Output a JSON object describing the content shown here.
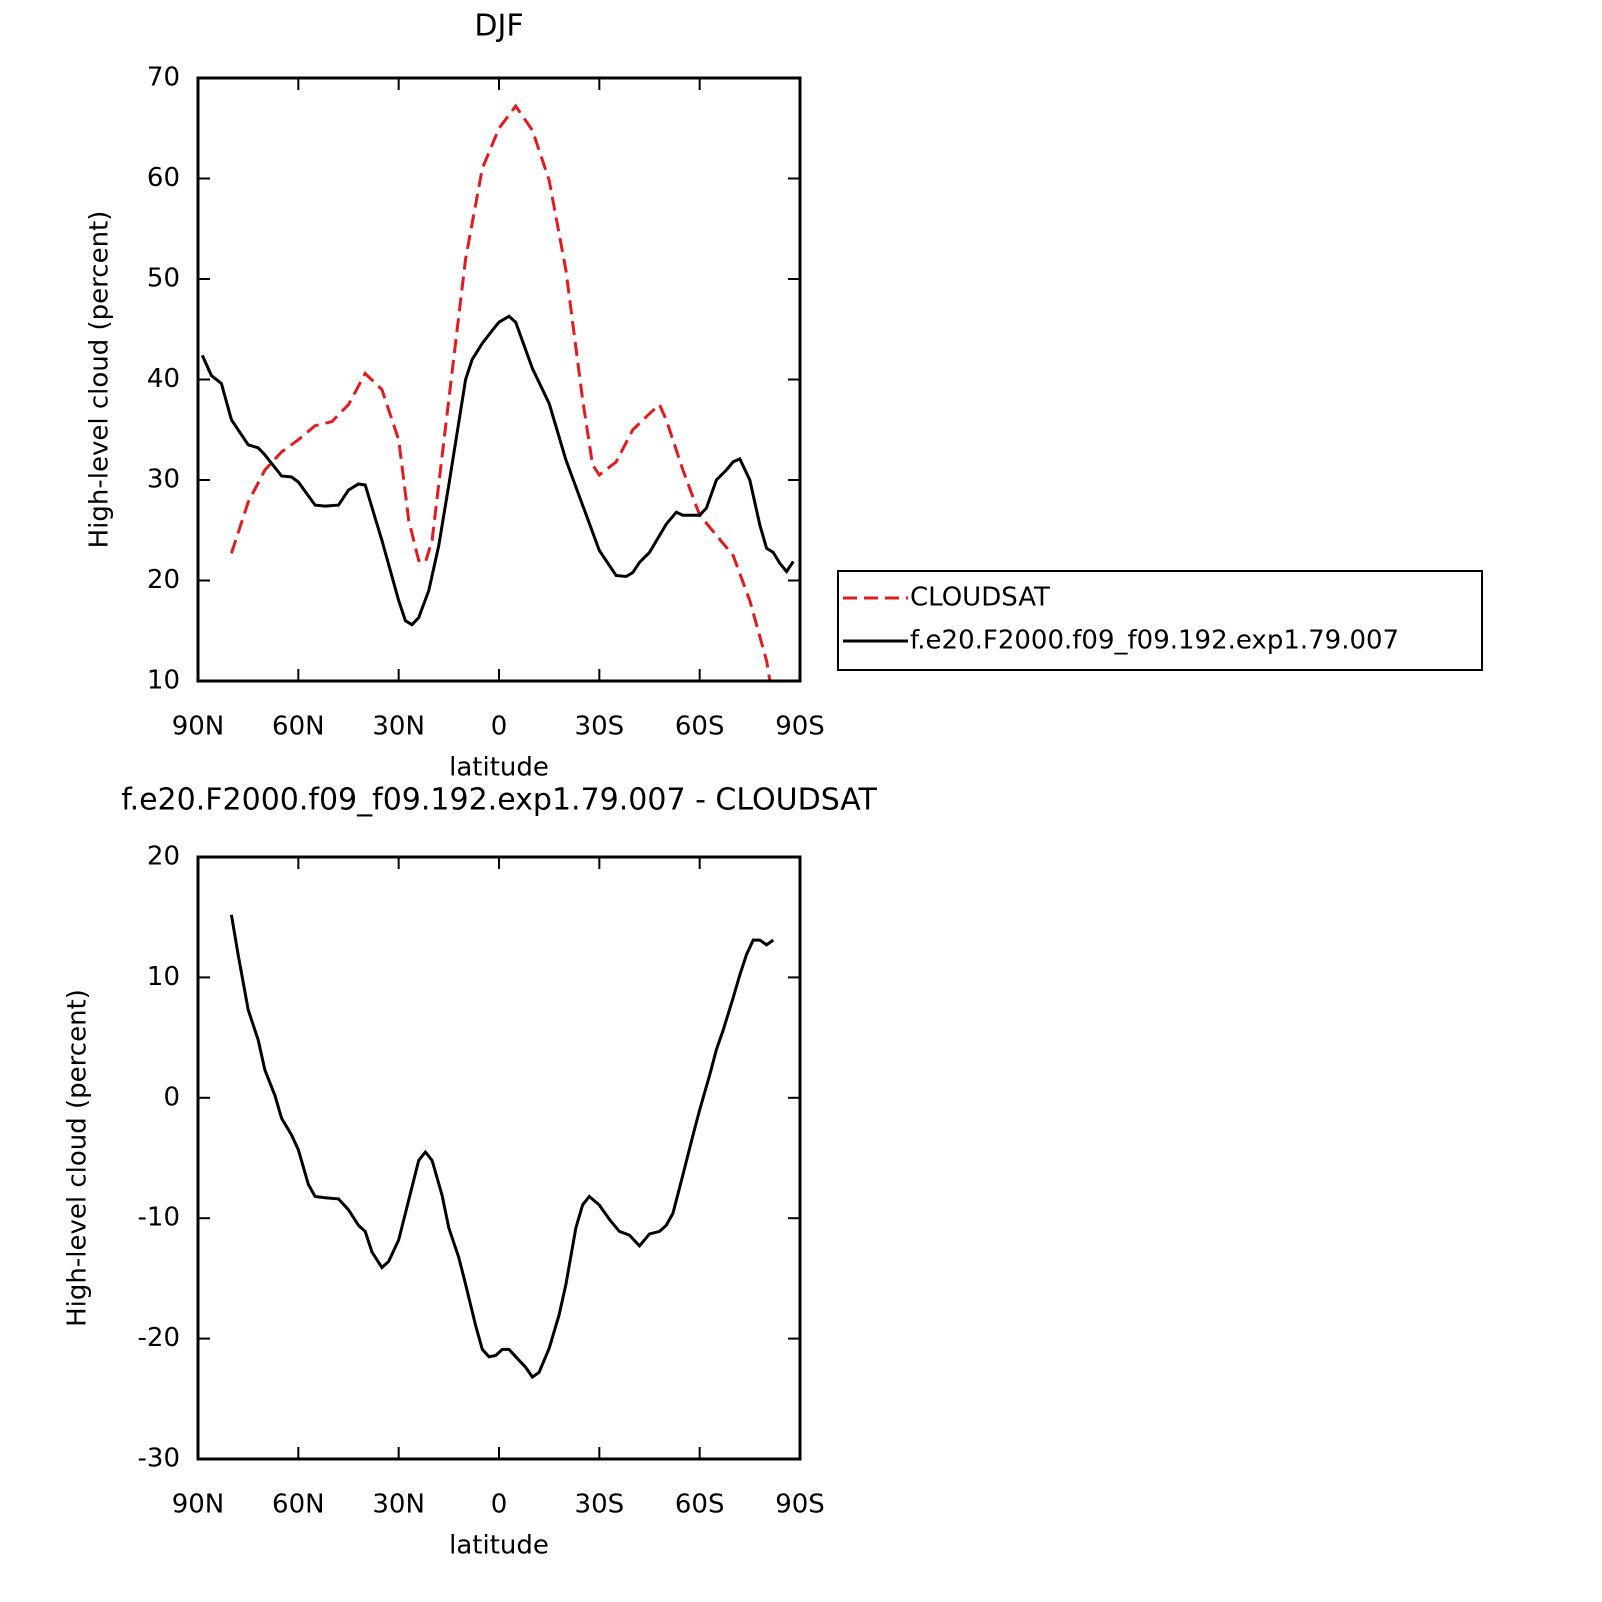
{
  "chart_data": [
    {
      "type": "line",
      "title": "DJF",
      "xlabel": "latitude",
      "ylabel": "High-level cloud (percent)",
      "xlim": [
        90,
        -90
      ],
      "xticks": [
        {
          "value": 90,
          "label": "90N"
        },
        {
          "value": 60,
          "label": "60N"
        },
        {
          "value": 30,
          "label": "30N"
        },
        0,
        {
          "value": -30,
          "label": "30S"
        },
        {
          "value": -60,
          "label": "60S"
        },
        {
          "value": -90,
          "label": "90S"
        }
      ],
      "ylim": [
        10,
        70
      ],
      "yticks": [
        10,
        20,
        30,
        40,
        50,
        60,
        70
      ],
      "legend": "right",
      "series": [
        {
          "name": "CLOUDSAT",
          "color": "#e41a1c",
          "dash": true,
          "x": [
            80,
            75,
            70,
            65,
            60,
            55,
            50,
            45,
            40,
            35,
            30,
            27,
            24,
            22,
            20,
            15,
            10,
            5,
            0,
            -5,
            -10,
            -15,
            -20,
            -25,
            -28,
            -30,
            -35,
            -40,
            -45,
            -48,
            -50,
            -55,
            -60,
            -65,
            -70,
            -75,
            -80,
            -81
          ],
          "values": [
            22.7,
            27.8,
            31,
            32.8,
            34,
            35.4,
            35.8,
            37.5,
            40.6,
            39,
            34,
            26,
            22,
            21.8,
            24,
            38,
            52,
            61,
            65,
            67.2,
            64.8,
            59.8,
            50.9,
            38,
            31.5,
            30.5,
            31.8,
            35,
            36.6,
            37.5,
            36,
            31,
            26.5,
            24.5,
            22.5,
            18,
            12,
            10
          ]
        },
        {
          "name": "f.e20.F2000.f09_f09.192.exp1.79.007",
          "color": "#000000",
          "dash": false,
          "x": [
            88.7,
            86,
            83,
            80,
            75,
            72,
            70,
            65,
            62,
            60,
            55,
            52,
            48,
            45,
            42,
            40,
            35,
            30,
            28,
            26,
            24,
            21,
            18,
            15,
            10,
            8,
            5,
            2,
            0,
            -3,
            -5,
            -10,
            -15,
            -20,
            -25,
            -30,
            -35,
            -38,
            -40,
            -42,
            -45,
            -50,
            -53,
            -55,
            -58,
            -60,
            -62,
            -65,
            -68,
            -70,
            -72,
            -75,
            -78,
            -80,
            -82,
            -84,
            -86,
            -88
          ],
          "values": [
            42.4,
            40.4,
            39.6,
            36,
            33.5,
            33.2,
            32.5,
            30.4,
            30.3,
            29.8,
            27.5,
            27.4,
            27.5,
            29,
            29.6,
            29.5,
            24,
            18,
            16,
            15.6,
            16.3,
            19,
            23.5,
            29.5,
            40,
            42,
            43.6,
            44.9,
            45.7,
            46.3,
            45.7,
            41.1,
            37.6,
            32,
            27.5,
            23,
            20.5,
            20.4,
            20.8,
            21.8,
            22.8,
            25.6,
            26.8,
            26.5,
            26.5,
            26.5,
            27.2,
            30,
            31,
            31.8,
            32.1,
            30,
            25.5,
            23.2,
            22.8,
            21.7,
            20.9,
            21.9
          ]
        }
      ]
    },
    {
      "type": "line",
      "title": "f.e20.F2000.f09_f09.192.exp1.79.007 - CLOUDSAT",
      "xlabel": "latitude",
      "ylabel": "High-level cloud (percent)",
      "xlim": [
        90,
        -90
      ],
      "xticks": [
        {
          "value": 90,
          "label": "90N"
        },
        {
          "value": 60,
          "label": "60N"
        },
        {
          "value": 30,
          "label": "30N"
        },
        0,
        {
          "value": -30,
          "label": "30S"
        },
        {
          "value": -60,
          "label": "60S"
        },
        {
          "value": -90,
          "label": "90S"
        }
      ],
      "ylim": [
        -30,
        20
      ],
      "yticks": [
        -30,
        -20,
        -10,
        0,
        10,
        20
      ],
      "color": "#000000",
      "x": [
        80,
        78,
        75,
        72,
        70,
        67,
        65,
        62,
        60,
        57,
        55,
        52,
        48,
        45,
        42,
        40,
        38,
        35,
        33,
        30,
        27,
        24,
        22,
        20,
        17,
        15,
        12,
        10,
        7,
        5,
        3,
        1,
        -1,
        -3,
        -5,
        -8,
        -10,
        -12,
        -15,
        -18,
        -20,
        -23,
        -25,
        -27,
        -30,
        -33,
        -36,
        -39,
        -42,
        -45,
        -48,
        -50,
        -52,
        -55,
        -58,
        -60,
        -63,
        -65,
        -67,
        -70,
        -72,
        -74,
        -76,
        -78,
        -80,
        -82
      ],
      "values": [
        15.2,
        11.9,
        7.3,
        4.8,
        2.3,
        0.2,
        -1.7,
        -3.1,
        -4.3,
        -7.2,
        -8.2,
        -8.3,
        -8.4,
        -9.3,
        -10.6,
        -11.1,
        -12.8,
        -14.1,
        -13.6,
        -11.8,
        -8.5,
        -5.2,
        -4.5,
        -5.2,
        -8.1,
        -10.8,
        -13.3,
        -15.5,
        -18.9,
        -20.9,
        -21.5,
        -21.4,
        -20.9,
        -20.9,
        -21.5,
        -22.4,
        -23.2,
        -22.8,
        -20.8,
        -18,
        -15.5,
        -10.8,
        -8.9,
        -8.2,
        -8.9,
        -10.1,
        -11.1,
        -11.4,
        -12.3,
        -11.3,
        -11.1,
        -10.6,
        -9.6,
        -6.4,
        -3.1,
        -1,
        1.9,
        4,
        5.6,
        8.3,
        10.2,
        11.9,
        13.1,
        13.1,
        12.7,
        13.1
      ]
    }
  ]
}
